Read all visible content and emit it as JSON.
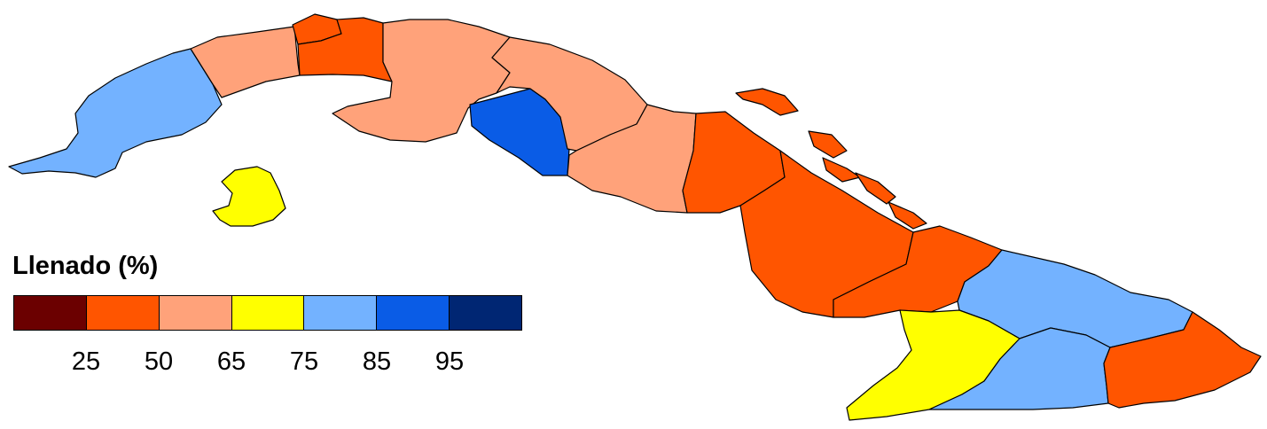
{
  "legend": {
    "title": "Llenado (%)",
    "colors": [
      "#6b0000",
      "#ff5500",
      "#ffa27a",
      "#ffff00",
      "#73b2ff",
      "#0a5ce6",
      "#002673"
    ],
    "ticks": [
      "25",
      "50",
      "65",
      "75",
      "85",
      "95"
    ]
  },
  "regions": [
    {
      "name": "pinar-del-rio",
      "fill": "#73b2ff"
    },
    {
      "name": "artemisa",
      "fill": "#ffa27a"
    },
    {
      "name": "la-habana",
      "fill": "#ff5500"
    },
    {
      "name": "mayabeque",
      "fill": "#ff5500"
    },
    {
      "name": "matanzas",
      "fill": "#ffa27a"
    },
    {
      "name": "cienfuegos",
      "fill": "#0a5ce6"
    },
    {
      "name": "villa-clara",
      "fill": "#ffa27a"
    },
    {
      "name": "sancti-spiritus",
      "fill": "#ffa27a"
    },
    {
      "name": "ciego-de-avila",
      "fill": "#ff5500"
    },
    {
      "name": "camaguey",
      "fill": "#ff5500"
    },
    {
      "name": "las-tunas",
      "fill": "#ff5500"
    },
    {
      "name": "holguin",
      "fill": "#73b2ff"
    },
    {
      "name": "granma",
      "fill": "#ffff00"
    },
    {
      "name": "santiago-de-cuba",
      "fill": "#73b2ff"
    },
    {
      "name": "guantanamo",
      "fill": "#ff5500"
    },
    {
      "name": "isla-de-la-juventud",
      "fill": "#ffff00"
    },
    {
      "name": "northern-cays",
      "fill": "#ff5500"
    }
  ]
}
